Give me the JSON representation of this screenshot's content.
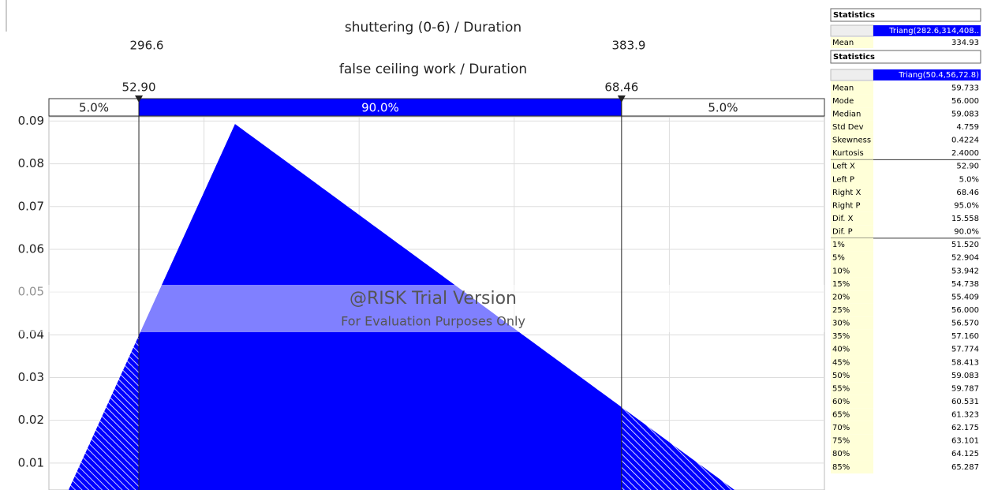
{
  "chart_data": {
    "type": "area",
    "title": "false ceiling work / Duration",
    "x": [
      50.4,
      56,
      72.8
    ],
    "values": [
      0,
      0.0893,
      0
    ],
    "color": "#0000ff",
    "xlim": [
      50,
      75
    ],
    "xticks": [
      55,
      60,
      65,
      70
    ],
    "ylim": [
      0.0037,
      0.091
    ],
    "yticks": [
      0.01,
      0.02,
      0.03,
      0.04,
      0.05,
      0.06,
      0.07,
      0.08,
      0.09
    ],
    "grid": true,
    "delimiters": [
      {
        "value": 52.9,
        "label": "52.90"
      },
      {
        "value": 68.46,
        "label": "68.46"
      }
    ],
    "band_labels": [
      "5.0%",
      "90.0%",
      "5.0%"
    ],
    "overlay": {
      "title": "shuttering (0-6) / Duration",
      "left": 296.6,
      "right": 383.9
    },
    "watermark": {
      "line1": "@RISK Trial Version",
      "line2": "For Evaluation Purposes Only"
    }
  },
  "stats": {
    "overlay": {
      "header": "Statistics",
      "fit": "Triang(282.6,314,408..",
      "rows": [
        [
          "Mean",
          "334.93"
        ]
      ]
    },
    "main": {
      "header": "Statistics",
      "fit": "Triang(50.4,56,72.8)",
      "rows": [
        [
          "Mean",
          "59.733"
        ],
        [
          "Mode",
          "56.000"
        ],
        [
          "Median",
          "59.083"
        ],
        [
          "Std Dev",
          "4.759"
        ],
        [
          "Skewness",
          "0.4224"
        ],
        [
          "Kurtosis",
          "2.4000"
        ],
        [
          "Left X",
          "52.90"
        ],
        [
          "Left P",
          "5.0%"
        ],
        [
          "Right X",
          "68.46"
        ],
        [
          "Right P",
          "95.0%"
        ],
        [
          "Dif. X",
          "15.558"
        ],
        [
          "Dif. P",
          "90.0%"
        ],
        [
          "1%",
          "51.520"
        ],
        [
          "5%",
          "52.904"
        ],
        [
          "10%",
          "53.942"
        ],
        [
          "15%",
          "54.738"
        ],
        [
          "20%",
          "55.409"
        ],
        [
          "25%",
          "56.000"
        ],
        [
          "30%",
          "56.570"
        ],
        [
          "35%",
          "57.160"
        ],
        [
          "40%",
          "57.774"
        ],
        [
          "45%",
          "58.413"
        ],
        [
          "50%",
          "59.083"
        ],
        [
          "55%",
          "59.787"
        ],
        [
          "60%",
          "60.531"
        ],
        [
          "65%",
          "61.323"
        ],
        [
          "70%",
          "62.175"
        ],
        [
          "75%",
          "63.101"
        ],
        [
          "80%",
          "64.125"
        ],
        [
          "85%",
          "65.287"
        ]
      ]
    }
  }
}
